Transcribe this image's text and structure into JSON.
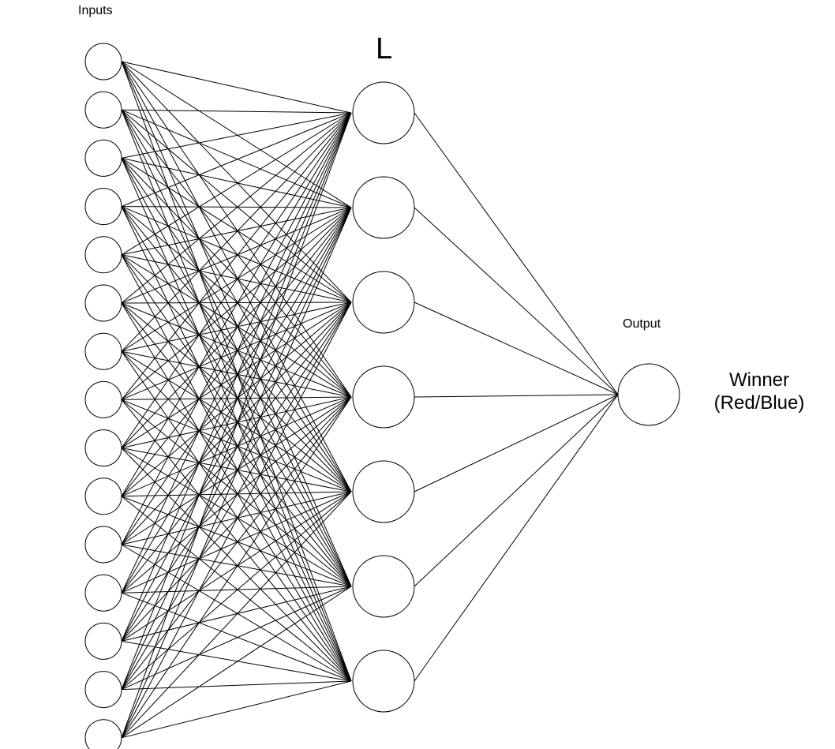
{
  "diagram": {
    "inputs_label": "Inputs",
    "hidden_label": "L",
    "output_label": "Output",
    "result_line1": "Winner",
    "result_line2": "(Red/Blue)",
    "input_node_count": 15,
    "hidden_node_count": 7,
    "output_node_count": 1,
    "line_color": "#000000",
    "node_fill": "#ffffff"
  }
}
